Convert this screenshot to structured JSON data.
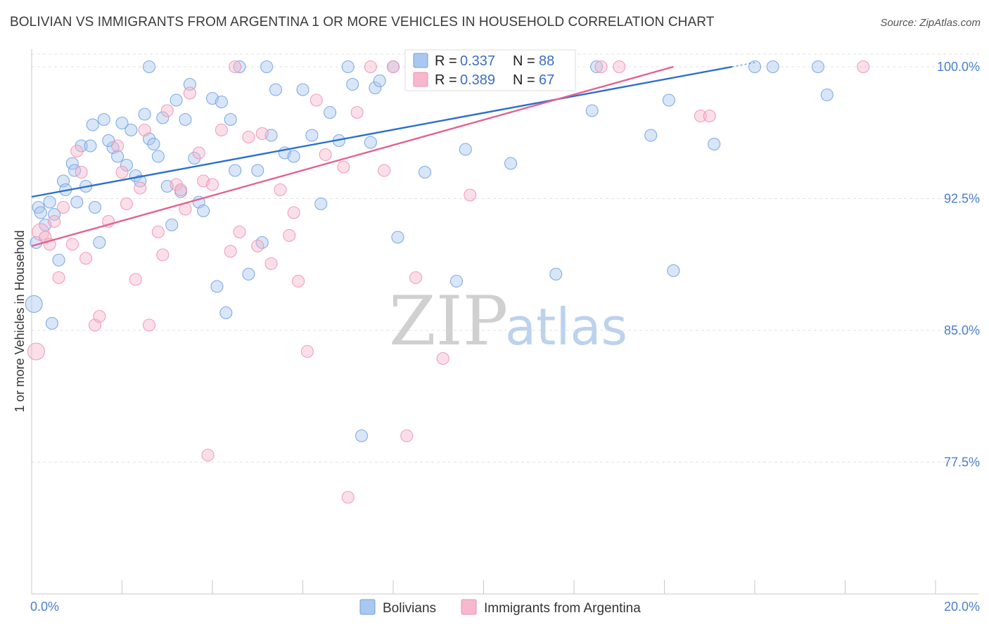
{
  "title": "BOLIVIAN VS IMMIGRANTS FROM ARGENTINA 1 OR MORE VEHICLES IN HOUSEHOLD CORRELATION CHART",
  "source": "Source: ZipAtlas.com",
  "watermark": {
    "zip": "ZIP",
    "atlas": "atlas"
  },
  "colors": {
    "blue_fill": "#a9c8f0",
    "blue_stroke": "#6f9fe0",
    "blue_line": "#2a6fcf",
    "pink_fill": "#f6b8cd",
    "pink_stroke": "#ee8fb0",
    "pink_line": "#e2628f"
  },
  "legend": {
    "r_label": "R =",
    "n_label": "N =",
    "series": [
      {
        "r": "0.337",
        "n": "88"
      },
      {
        "r": "0.389",
        "n": "67"
      }
    ]
  },
  "chart_data": {
    "type": "scatter",
    "title": "BOLIVIAN VS IMMIGRANTS FROM ARGENTINA 1 OR MORE VEHICLES IN HOUSEHOLD CORRELATION CHART",
    "xlabel": "",
    "ylabel": "1 or more Vehicles in Household",
    "xlim": [
      0,
      20
    ],
    "ylim": [
      70,
      101
    ],
    "x_tick_labels": [
      "0.0%",
      "20.0%"
    ],
    "y_ticks": [
      77.5,
      85.0,
      92.5,
      100.0
    ],
    "y_tick_labels": [
      "77.5%",
      "85.0%",
      "92.5%",
      "100.0%"
    ],
    "series": [
      {
        "name": "Bolivians",
        "trend": {
          "x0": 0,
          "y0": 92.6,
          "x1": 15.5,
          "y1": 100.0
        },
        "points": [
          [
            0.05,
            86.5,
            2
          ],
          [
            0.1,
            90.0,
            1
          ],
          [
            0.15,
            92.0,
            1
          ],
          [
            0.2,
            91.7,
            1
          ],
          [
            0.3,
            91.0,
            1
          ],
          [
            0.4,
            92.3,
            1
          ],
          [
            0.5,
            91.6,
            1
          ],
          [
            0.45,
            85.4,
            1
          ],
          [
            0.6,
            89.0,
            1
          ],
          [
            0.7,
            93.5,
            1
          ],
          [
            0.75,
            93.0,
            1
          ],
          [
            0.9,
            94.5,
            1
          ],
          [
            0.95,
            94.1,
            1
          ],
          [
            1.1,
            95.5,
            1
          ],
          [
            1.0,
            92.3,
            1
          ],
          [
            1.2,
            93.2,
            1
          ],
          [
            1.3,
            95.5,
            1
          ],
          [
            1.35,
            96.7,
            1
          ],
          [
            1.4,
            92.0,
            1
          ],
          [
            1.5,
            90.0,
            1
          ],
          [
            1.6,
            97.0,
            1
          ],
          [
            1.8,
            95.4,
            1
          ],
          [
            1.9,
            94.9,
            1
          ],
          [
            2.0,
            96.8,
            1
          ],
          [
            2.1,
            94.4,
            1
          ],
          [
            2.2,
            96.4,
            1
          ],
          [
            2.3,
            93.8,
            1
          ],
          [
            2.4,
            93.5,
            1
          ],
          [
            2.5,
            97.3,
            1
          ],
          [
            2.6,
            95.9,
            1
          ],
          [
            2.7,
            95.6,
            1
          ],
          [
            2.8,
            94.9,
            1
          ],
          [
            2.9,
            97.1,
            1
          ],
          [
            3.0,
            93.2,
            1
          ],
          [
            3.1,
            91.0,
            1
          ],
          [
            3.2,
            98.1,
            1
          ],
          [
            3.3,
            92.9,
            1
          ],
          [
            3.4,
            97.0,
            1
          ],
          [
            3.5,
            99.0,
            1
          ],
          [
            3.6,
            94.8,
            1
          ],
          [
            3.7,
            92.3,
            1
          ],
          [
            3.8,
            91.8,
            1
          ],
          [
            4.0,
            98.2,
            1
          ],
          [
            4.1,
            87.5,
            1
          ],
          [
            4.2,
            98.0,
            1
          ],
          [
            4.3,
            86.0,
            1
          ],
          [
            4.4,
            97.0,
            1
          ],
          [
            4.5,
            94.1,
            1
          ],
          [
            4.6,
            100.0,
            1
          ],
          [
            4.8,
            88.2,
            1
          ],
          [
            5.0,
            94.1,
            1
          ],
          [
            5.1,
            90.0,
            1
          ],
          [
            5.3,
            96.1,
            1
          ],
          [
            5.4,
            98.7,
            1
          ],
          [
            5.6,
            95.1,
            1
          ],
          [
            5.8,
            94.9,
            1
          ],
          [
            6.0,
            98.7,
            1
          ],
          [
            6.2,
            96.1,
            1
          ],
          [
            6.4,
            92.2,
            1
          ],
          [
            6.6,
            97.4,
            1
          ],
          [
            6.8,
            95.8,
            1
          ],
          [
            7.0,
            100.0,
            1
          ],
          [
            7.1,
            99.0,
            1
          ],
          [
            7.3,
            79.0,
            1
          ],
          [
            7.5,
            95.7,
            1
          ],
          [
            7.6,
            98.8,
            1
          ],
          [
            7.7,
            99.2,
            1
          ],
          [
            8.0,
            100.0,
            1
          ],
          [
            8.1,
            90.3,
            1
          ],
          [
            8.7,
            94.0,
            1
          ],
          [
            9.4,
            87.8,
            1
          ],
          [
            9.6,
            95.3,
            1
          ],
          [
            10.6,
            94.5,
            1
          ],
          [
            11.0,
            100.0,
            1
          ],
          [
            11.6,
            88.2,
            1
          ],
          [
            12.4,
            97.5,
            1
          ],
          [
            12.5,
            100.0,
            1
          ],
          [
            13.7,
            96.1,
            1
          ],
          [
            14.1,
            98.1,
            1
          ],
          [
            14.2,
            88.4,
            1
          ],
          [
            15.1,
            95.6,
            1
          ],
          [
            16.0,
            100.0,
            1
          ],
          [
            17.4,
            100.0,
            1
          ],
          [
            17.6,
            98.4,
            1
          ],
          [
            16.4,
            100.0,
            1
          ],
          [
            5.2,
            100.0,
            1
          ],
          [
            2.6,
            100.0,
            1
          ],
          [
            1.7,
            95.8,
            1
          ]
        ]
      },
      {
        "name": "Immigrants from Argentina",
        "trend": {
          "x0": 0,
          "y0": 89.8,
          "x1": 14.2,
          "y1": 100.0
        },
        "points": [
          [
            0.1,
            83.8,
            2
          ],
          [
            0.2,
            90.6,
            2
          ],
          [
            0.3,
            90.3,
            1
          ],
          [
            0.4,
            89.9,
            1
          ],
          [
            0.5,
            91.2,
            1
          ],
          [
            0.6,
            88.0,
            1
          ],
          [
            0.7,
            92.0,
            1
          ],
          [
            0.9,
            89.9,
            1
          ],
          [
            1.0,
            95.2,
            1
          ],
          [
            1.1,
            94.0,
            1
          ],
          [
            1.2,
            89.1,
            1
          ],
          [
            1.4,
            85.3,
            1
          ],
          [
            1.5,
            85.8,
            1
          ],
          [
            1.7,
            91.2,
            1
          ],
          [
            1.9,
            95.5,
            1
          ],
          [
            2.0,
            94.0,
            1
          ],
          [
            2.1,
            92.2,
            1
          ],
          [
            2.3,
            87.9,
            1
          ],
          [
            2.4,
            93.1,
            1
          ],
          [
            2.5,
            96.4,
            1
          ],
          [
            2.6,
            85.3,
            1
          ],
          [
            2.8,
            90.6,
            1
          ],
          [
            2.9,
            89.3,
            1
          ],
          [
            3.0,
            97.5,
            1
          ],
          [
            3.2,
            93.3,
            1
          ],
          [
            3.3,
            93.0,
            1
          ],
          [
            3.4,
            91.9,
            1
          ],
          [
            3.5,
            98.5,
            1
          ],
          [
            3.7,
            95.1,
            1
          ],
          [
            3.8,
            93.5,
            1
          ],
          [
            3.9,
            77.9,
            1
          ],
          [
            4.0,
            93.3,
            1
          ],
          [
            4.2,
            96.4,
            1
          ],
          [
            4.4,
            89.5,
            1
          ],
          [
            4.5,
            100.0,
            1
          ],
          [
            4.6,
            90.6,
            1
          ],
          [
            4.8,
            96.0,
            1
          ],
          [
            5.0,
            89.8,
            1
          ],
          [
            5.1,
            96.2,
            1
          ],
          [
            5.3,
            88.8,
            1
          ],
          [
            5.5,
            93.0,
            1
          ],
          [
            5.7,
            90.4,
            1
          ],
          [
            5.8,
            91.7,
            1
          ],
          [
            5.9,
            87.8,
            1
          ],
          [
            6.1,
            83.8,
            1
          ],
          [
            6.3,
            98.1,
            1
          ],
          [
            6.5,
            95.0,
            1
          ],
          [
            6.9,
            94.3,
            1
          ],
          [
            7.0,
            75.5,
            1
          ],
          [
            7.2,
            97.4,
            1
          ],
          [
            7.5,
            100.0,
            1
          ],
          [
            7.8,
            94.1,
            1
          ],
          [
            8.0,
            100.0,
            1
          ],
          [
            8.3,
            79.0,
            1
          ],
          [
            8.5,
            88.0,
            1
          ],
          [
            8.7,
            100.0,
            1
          ],
          [
            9.1,
            83.4,
            1
          ],
          [
            9.5,
            100.0,
            1
          ],
          [
            9.7,
            92.7,
            1
          ],
          [
            10.1,
            100.0,
            1
          ],
          [
            10.4,
            99.0,
            1
          ],
          [
            11.8,
            100.0,
            1
          ],
          [
            12.6,
            100.0,
            1
          ],
          [
            14.8,
            97.2,
            1
          ],
          [
            15.0,
            97.2,
            1
          ],
          [
            18.4,
            100.0,
            1
          ],
          [
            13.0,
            100.0,
            1
          ]
        ]
      }
    ],
    "legend_position": "bottom"
  }
}
